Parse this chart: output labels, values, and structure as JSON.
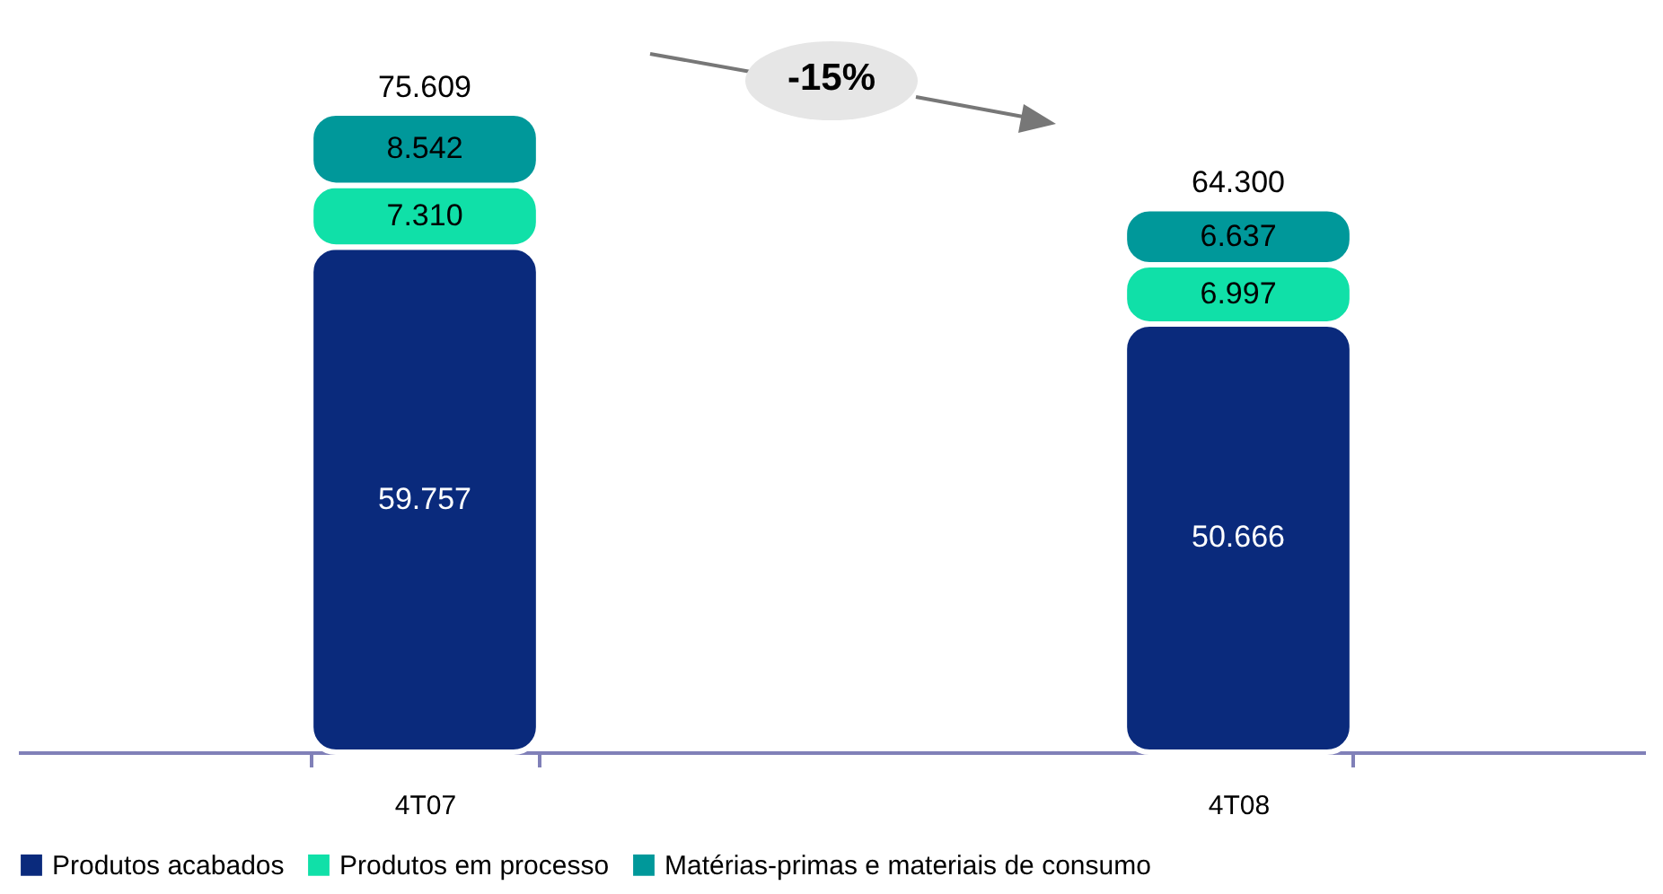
{
  "chart_data": {
    "type": "bar",
    "stacked": true,
    "categories": [
      "4T07",
      "4T08"
    ],
    "series": [
      {
        "name": "Produtos acabados",
        "color": "#0a2a7c",
        "values": [
          59757,
          50666
        ],
        "value_labels": [
          "59.757",
          "50.666"
        ]
      },
      {
        "name": "Produtos em processo",
        "color": "#10e0a8",
        "values": [
          7310,
          6997
        ],
        "value_labels": [
          "7.310",
          "6.997"
        ]
      },
      {
        "name": "Matérias-primas e materiais de consumo",
        "color": "#00989a",
        "values": [
          8542,
          6637
        ],
        "value_labels": [
          "8.542",
          "6.637"
        ]
      }
    ],
    "totals": [
      "75.609",
      "64.300"
    ],
    "annotations": [
      "-15%"
    ],
    "legend": "bottom",
    "tick_labels": "x"
  }
}
